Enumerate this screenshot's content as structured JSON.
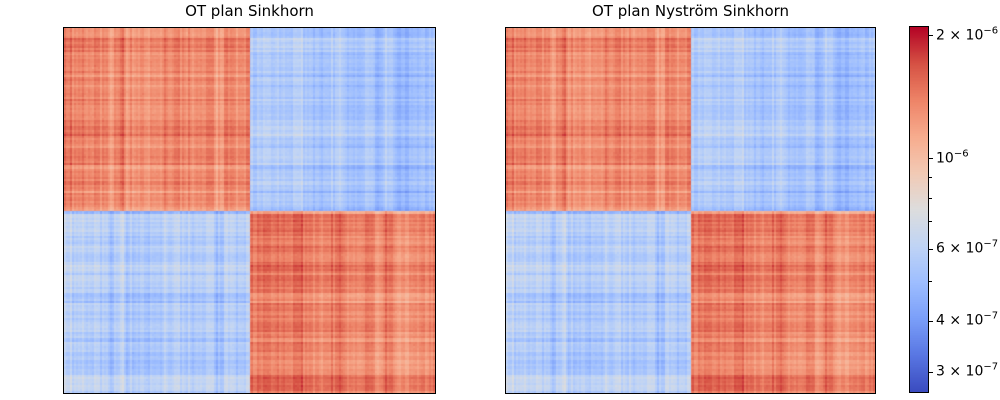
{
  "chart_data": [
    {
      "type": "heatmap",
      "title": "OT plan Sinkhorn",
      "structure": "2x2 block matrix (two-cluster optimal transport coupling), no axis ticks",
      "block_rows": 2,
      "block_cols": 2,
      "block_values": [
        [
          1.4e-06,
          5.6e-07
        ],
        [
          5.6e-07,
          1.4e-06
        ]
      ],
      "value_scale": "log",
      "cell_seed": 7
    },
    {
      "type": "heatmap",
      "title": "OT plan Nyström Sinkhorn",
      "structure": "2x2 block matrix (two-cluster optimal transport coupling), no axis ticks",
      "block_rows": 2,
      "block_cols": 2,
      "block_values": [
        [
          1.4e-06,
          5.6e-07
        ],
        [
          5.6e-07,
          1.4e-06
        ]
      ],
      "value_scale": "log",
      "cell_seed": 11
    }
  ],
  "colorbar": {
    "colormap": "coolwarm",
    "scale": "log",
    "vmin": 2.67e-07,
    "vmax": 2.11e-06,
    "major_ticks": [
      {
        "value": 2e-06,
        "mantissa": "2 × 10",
        "exponent": "−6"
      },
      {
        "value": 1e-06,
        "mantissa": "10",
        "exponent": "−6"
      },
      {
        "value": 6e-07,
        "mantissa": "6 × 10",
        "exponent": "−7"
      },
      {
        "value": 4e-07,
        "mantissa": "4 × 10",
        "exponent": "−7"
      },
      {
        "value": 3e-07,
        "mantissa": "3 × 10",
        "exponent": "−7"
      }
    ],
    "minor_ticks": [
      9e-07,
      8e-07,
      7e-07,
      5e-07
    ],
    "colormap_anchors": [
      "#3b4cc0",
      "#5977e3",
      "#7b9ff9",
      "#9ebeff",
      "#c0d4f5",
      "#dddddd",
      "#f2cab5",
      "#f7ac8e",
      "#ee8468",
      "#d65244",
      "#b40426"
    ]
  },
  "texture": {
    "cells": 186,
    "seed_rows": 42,
    "seed_cols": 1337,
    "sigma_fine": 0.055,
    "sigma_coarse": 0.05,
    "coarse_block": 5,
    "sigma_cell": 0.012
  },
  "frame_color": "#000000",
  "background_color": "#ffffff"
}
